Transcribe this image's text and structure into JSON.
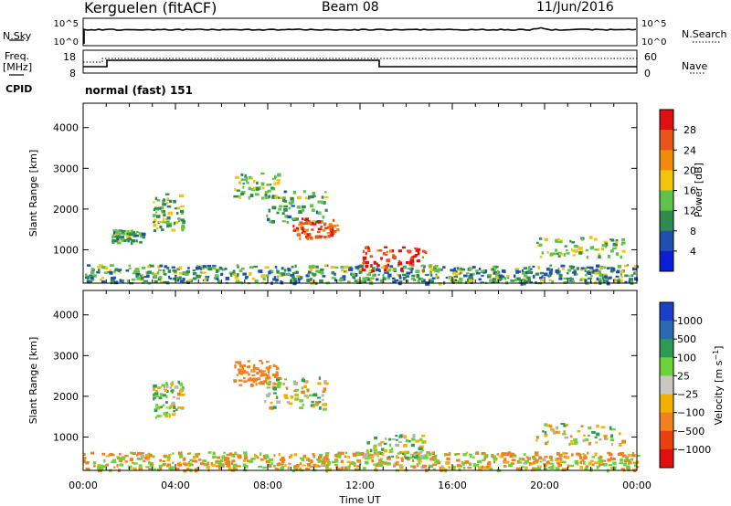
{
  "header": {
    "station": "Kerguelen (fitACF)",
    "beam": "Beam 08",
    "date": "11/Jun/2016"
  },
  "noise_panel": {
    "left_label": "N.Sky",
    "right_label": "N.Search",
    "left_ticks": [
      "10^5",
      "10^0"
    ],
    "right_ticks": [
      "10^5",
      "10^0"
    ]
  },
  "freq_panel": {
    "left_label_line1": "Freq.",
    "left_label_line2": "[MHz]",
    "right_label": "Nave",
    "left_ticks": [
      "18",
      "8"
    ],
    "right_ticks": [
      "60",
      "0"
    ]
  },
  "cpid": {
    "label": "CPID",
    "value": "normal (fast) 151"
  },
  "colors": {
    "power_scale": [
      "#0a1fd6",
      "#1f4fb0",
      "#2f8a4f",
      "#5fc24a",
      "#f2c40c",
      "#f28a0a",
      "#e8541a",
      "#e01010"
    ],
    "velocity_scale": [
      "#1c3fc8",
      "#2a6ab0",
      "#2f9a56",
      "#6cd23a",
      "#c8c8c0",
      "#f2b000",
      "#f08020",
      "#ea4010",
      "#e01010"
    ],
    "ground_scatter": "#b4b4b0"
  },
  "time_axis": {
    "ticks": [
      "00:00",
      "04:00",
      "08:00",
      "12:00",
      "16:00",
      "20:00",
      "00:00"
    ],
    "label": "Time UT"
  },
  "power_colorbar": {
    "ticks": [
      "28",
      "24",
      "20",
      "16",
      "12",
      "8",
      "4"
    ],
    "label": "Power [dB]"
  },
  "velocity_colorbar": {
    "ticks": [
      "1000",
      "500",
      "100",
      "25",
      "−25",
      "−100",
      "−500",
      "−1000"
    ],
    "label": "Velocity [m s",
    "label_sup": "−1",
    "label_end": "]"
  },
  "chart_data": [
    {
      "type": "heatmap",
      "parameter": "power",
      "ylabel": "Slant Range [km]",
      "yticks": [
        1000,
        2000,
        3000,
        4000
      ],
      "ylim": [
        180,
        4600
      ],
      "xlim_hours": [
        0,
        24
      ],
      "xlabel": "Time UT",
      "colorbar": {
        "label": "Power [dB]",
        "range": [
          0,
          32
        ],
        "ticks": [
          4,
          8,
          12,
          16,
          20,
          24,
          28
        ]
      },
      "echo_regions": [
        {
          "t": [
            0,
            24
          ],
          "range_km": [
            200,
            650
          ],
          "power_db": 8
        },
        {
          "t": [
            1.2,
            2.6
          ],
          "range_km": [
            1200,
            1500
          ],
          "power_db": 12
        },
        {
          "t": [
            3.0,
            4.3
          ],
          "range_km": [
            1500,
            2400
          ],
          "power_db": 14
        },
        {
          "t": [
            6.5,
            8.5
          ],
          "range_km": [
            2300,
            2900
          ],
          "power_db": 14
        },
        {
          "t": [
            7.8,
            10.5
          ],
          "range_km": [
            1700,
            2500
          ],
          "power_db": 12
        },
        {
          "t": [
            9.0,
            11.0
          ],
          "range_km": [
            1300,
            1800
          ],
          "power_db": 26
        },
        {
          "t": [
            12.0,
            14.8
          ],
          "range_km": [
            500,
            1100
          ],
          "power_db": 28
        },
        {
          "t": [
            19.5,
            23.4
          ],
          "range_km": [
            850,
            1350
          ],
          "power_db": 14
        }
      ]
    },
    {
      "type": "heatmap",
      "parameter": "velocity",
      "ylabel": "Slant Range [km]",
      "yticks": [
        1000,
        2000,
        3000,
        4000
      ],
      "ylim": [
        180,
        4600
      ],
      "xlim_hours": [
        0,
        24
      ],
      "xlabel": "Time UT",
      "colorbar": {
        "label": "Velocity [m s−1]",
        "ticks": [
          1000,
          500,
          100,
          25,
          -25,
          -100,
          -500,
          -1000
        ]
      },
      "echo_regions": [
        {
          "t": [
            0,
            24
          ],
          "range_km": [
            200,
            650
          ],
          "velocity_ms": -60
        },
        {
          "t": [
            3.0,
            4.3
          ],
          "range_km": [
            1500,
            2400
          ],
          "velocity_ms": 40
        },
        {
          "t": [
            6.5,
            8.5
          ],
          "range_km": [
            2300,
            2900
          ],
          "velocity_ms": -300
        },
        {
          "t": [
            7.8,
            10.5
          ],
          "range_km": [
            1700,
            2500
          ],
          "velocity_ms": 0
        },
        {
          "t": [
            12.0,
            14.8
          ],
          "range_km": [
            500,
            1100
          ],
          "velocity_ms": 60
        },
        {
          "t": [
            19.5,
            23.4
          ],
          "range_km": [
            850,
            1350
          ],
          "velocity_ms": 0
        }
      ]
    }
  ]
}
